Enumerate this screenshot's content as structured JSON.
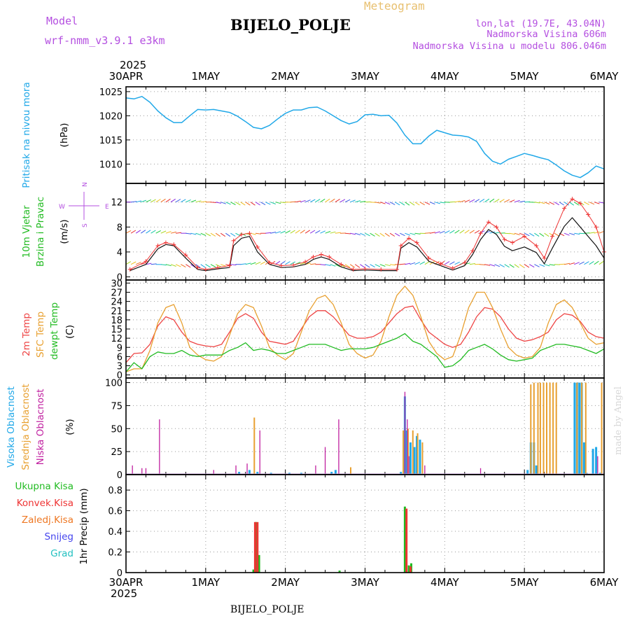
{
  "header": {
    "model_label": "Model",
    "model_name": "wrf-nmm_v3.9.1  e3km",
    "meteogram_label": "Meteogram",
    "station": "BIJELO_POLJE",
    "lonlat": "lon,lat (19.7E, 43.04N)",
    "altitude": "Nadmorska Visina 606m",
    "model_altitude": "Nadmorska Visina u modelu 806.046m",
    "footer_station": "BIJELO_POLJE",
    "credit": "made by Angel"
  },
  "time_axis": {
    "year": "2025",
    "labels": [
      "30APR",
      "1MAY",
      "2MAY",
      "3MAY",
      "4MAY",
      "5MAY",
      "6MAY"
    ],
    "days": 6
  },
  "colors": {
    "pressure": "#20a8e8",
    "temp2m": "#ee4444",
    "sfc_temp": "#e8a030",
    "dewpoint": "#22bb22",
    "wind_speed": "#111111",
    "wind_gust": "#ee3333",
    "wind_axis": "#b44fe0",
    "cloud_high": "#20a8e8",
    "cloud_mid": "#e8a030",
    "cloud_low": "#c020a0",
    "precip_total": "#22bb22",
    "precip_conv": "#ee3333",
    "precip_frozen": "#ee7722",
    "snow": "#4444ee",
    "hail": "#22c0c0"
  },
  "chart_data": [
    {
      "type": "line",
      "panel": "pressure",
      "title_lines": [
        "Pritisak na nivou mora"
      ],
      "ylabel": "(hPa)",
      "ylim": [
        1006,
        1026
      ],
      "yticks": [
        1010,
        1015,
        1020,
        1025
      ],
      "x_unit": "days since 30APR 00UTC",
      "series": [
        {
          "name": "MSLP",
          "x": [
            0,
            0.1,
            0.2,
            0.3,
            0.4,
            0.5,
            0.6,
            0.7,
            0.8,
            0.9,
            1.0,
            1.1,
            1.2,
            1.3,
            1.4,
            1.5,
            1.6,
            1.7,
            1.8,
            1.9,
            2.0,
            2.1,
            2.2,
            2.3,
            2.4,
            2.5,
            2.6,
            2.7,
            2.8,
            2.9,
            3.0,
            3.1,
            3.2,
            3.3,
            3.4,
            3.5,
            3.6,
            3.7,
            3.8,
            3.9,
            4.0,
            4.1,
            4.2,
            4.3,
            4.4,
            4.5,
            4.6,
            4.7,
            4.8,
            4.9,
            5.0,
            5.1,
            5.2,
            5.3,
            5.4,
            5.5,
            5.6,
            5.7,
            5.8,
            5.9,
            6.0
          ],
          "values": [
            1023.7,
            1023.5,
            1024.0,
            1022.8,
            1021.0,
            1019.6,
            1018.6,
            1018.6,
            1020.0,
            1021.3,
            1021.2,
            1021.3,
            1021.0,
            1020.7,
            1019.9,
            1018.8,
            1017.6,
            1017.3,
            1018.0,
            1019.3,
            1020.5,
            1021.2,
            1021.2,
            1021.7,
            1021.8,
            1021.0,
            1020.0,
            1019.0,
            1018.3,
            1018.8,
            1020.2,
            1020.3,
            1020.0,
            1020.1,
            1018.5,
            1016.0,
            1014.2,
            1014.2,
            1015.8,
            1017.0,
            1016.5,
            1016.0,
            1015.9,
            1015.6,
            1014.7,
            1012.2,
            1010.6,
            1010.0,
            1011.0,
            1011.6,
            1012.2,
            1011.8,
            1011.3,
            1010.9,
            1009.8,
            1008.6,
            1007.7,
            1007.2,
            1008.2,
            1009.6,
            1009.0
          ]
        }
      ]
    },
    {
      "type": "line",
      "panel": "wind",
      "title_lines": [
        "10m Vjetar",
        "Brzina i Pravac"
      ],
      "ylabel": "(m/s)",
      "ylim": [
        -0.5,
        15
      ],
      "yticks": [
        0,
        4,
        8,
        12
      ],
      "direction_key": [
        "N",
        "E",
        "S",
        "W"
      ],
      "series": [
        {
          "name": "Wind speed",
          "x": [
            0.05,
            0.25,
            0.4,
            0.5,
            0.6,
            0.75,
            0.9,
            1.0,
            1.15,
            1.3,
            1.35,
            1.45,
            1.55,
            1.65,
            1.8,
            1.95,
            2.1,
            2.25,
            2.35,
            2.45,
            2.55,
            2.7,
            2.85,
            3.0,
            3.2,
            3.4,
            3.45,
            3.55,
            3.65,
            3.8,
            3.95,
            4.1,
            4.25,
            4.35,
            4.45,
            4.55,
            4.65,
            4.75,
            4.85,
            5.0,
            5.15,
            5.25,
            5.35,
            5.5,
            5.6,
            5.7,
            5.8,
            5.9,
            6.0
          ],
          "values": [
            1.0,
            2.0,
            4.5,
            5.2,
            5.0,
            3.0,
            1.2,
            1.0,
            1.3,
            1.5,
            5.0,
            6.2,
            6.5,
            4.0,
            2.0,
            1.5,
            1.6,
            2.0,
            2.8,
            3.2,
            2.8,
            1.6,
            1.0,
            1.1,
            1.0,
            1.0,
            4.6,
            5.5,
            4.8,
            2.5,
            1.8,
            1.1,
            1.8,
            3.6,
            6.0,
            7.6,
            6.8,
            4.9,
            4.2,
            4.8,
            3.9,
            2.1,
            4.6,
            8.1,
            9.5,
            8.0,
            6.5,
            5.0,
            3.0
          ]
        },
        {
          "name": "Wind gust",
          "x": [
            0.05,
            0.25,
            0.4,
            0.5,
            0.6,
            0.75,
            0.9,
            1.0,
            1.15,
            1.3,
            1.35,
            1.45,
            1.55,
            1.65,
            1.8,
            1.95,
            2.1,
            2.25,
            2.35,
            2.45,
            2.55,
            2.7,
            2.85,
            3.0,
            3.2,
            3.4,
            3.45,
            3.55,
            3.65,
            3.8,
            3.95,
            4.1,
            4.25,
            4.35,
            4.45,
            4.55,
            4.65,
            4.75,
            4.85,
            5.0,
            5.15,
            5.25,
            5.35,
            5.5,
            5.6,
            5.7,
            5.8,
            5.9,
            6.0
          ],
          "values": [
            1.2,
            2.5,
            5.0,
            5.5,
            5.2,
            3.5,
            1.5,
            1.2,
            1.5,
            1.8,
            5.8,
            6.8,
            7.0,
            4.8,
            2.3,
            1.8,
            1.9,
            2.4,
            3.2,
            3.6,
            3.2,
            2.0,
            1.2,
            1.3,
            1.2,
            1.2,
            5.0,
            6.2,
            5.5,
            3.0,
            2.1,
            1.4,
            2.3,
            4.2,
            7.0,
            8.8,
            8.0,
            6.0,
            5.5,
            6.5,
            5.0,
            3.0,
            6.5,
            11.0,
            12.5,
            11.8,
            10.0,
            8.0,
            4.0
          ]
        }
      ]
    },
    {
      "type": "line",
      "panel": "temperature",
      "title_lines": [
        "2m Temp",
        "SFC Temp",
        "dewpt Temp"
      ],
      "ylabel": "(C)",
      "ylim": [
        -1,
        31
      ],
      "yticks": [
        0,
        3,
        6,
        9,
        12,
        15,
        18,
        21,
        24,
        27,
        30
      ],
      "series": [
        {
          "name": "2m Temp",
          "x": [
            0,
            0.1,
            0.2,
            0.3,
            0.4,
            0.5,
            0.6,
            0.7,
            0.8,
            0.9,
            1.0,
            1.1,
            1.2,
            1.3,
            1.4,
            1.5,
            1.6,
            1.7,
            1.8,
            1.9,
            2.0,
            2.1,
            2.2,
            2.3,
            2.4,
            2.5,
            2.6,
            2.7,
            2.8,
            2.9,
            3.0,
            3.1,
            3.2,
            3.3,
            3.4,
            3.5,
            3.6,
            3.7,
            3.8,
            3.9,
            4.0,
            4.1,
            4.2,
            4.3,
            4.4,
            4.5,
            4.6,
            4.7,
            4.8,
            4.9,
            5.0,
            5.1,
            5.2,
            5.3,
            5.4,
            5.5,
            5.6,
            5.7,
            5.8,
            5.9,
            6.0
          ],
          "values": [
            4,
            7,
            7.2,
            10,
            16,
            19,
            18,
            14,
            11,
            10,
            9.5,
            9.2,
            10,
            14,
            18.5,
            20,
            18.5,
            14,
            11,
            10.5,
            10,
            11,
            15,
            19,
            21,
            21,
            19,
            16,
            13,
            12,
            12,
            12.5,
            14,
            17,
            20,
            22,
            22.5,
            18,
            14,
            12,
            10,
            9,
            10,
            14,
            19,
            22,
            21.5,
            19,
            15,
            12,
            11,
            11.5,
            12.5,
            14,
            18,
            20,
            19.5,
            17.5,
            14,
            12.5,
            12
          ]
        },
        {
          "name": "SFC Temp",
          "x": [
            0,
            0.1,
            0.2,
            0.3,
            0.4,
            0.5,
            0.6,
            0.7,
            0.8,
            0.9,
            1.0,
            1.1,
            1.2,
            1.3,
            1.4,
            1.5,
            1.6,
            1.7,
            1.8,
            1.9,
            2.0,
            2.1,
            2.2,
            2.3,
            2.4,
            2.5,
            2.6,
            2.7,
            2.8,
            2.9,
            3.0,
            3.1,
            3.2,
            3.3,
            3.4,
            3.5,
            3.6,
            3.7,
            3.8,
            3.9,
            4.0,
            4.1,
            4.2,
            4.3,
            4.4,
            4.5,
            4.6,
            4.7,
            4.8,
            4.9,
            5.0,
            5.1,
            5.2,
            5.3,
            5.4,
            5.5,
            5.6,
            5.7,
            5.8,
            5.9,
            6.0
          ],
          "values": [
            1,
            2,
            2,
            8,
            17,
            22,
            23,
            17,
            9,
            6.5,
            5,
            4.5,
            6,
            13,
            20,
            23,
            22,
            16,
            9,
            6.5,
            5,
            7,
            14,
            21,
            25,
            26,
            23,
            17,
            10,
            7,
            5.5,
            6.5,
            11,
            19,
            26,
            29,
            26,
            19,
            11,
            7,
            5,
            6,
            13,
            22,
            27,
            27,
            22,
            15,
            9,
            6.5,
            5.5,
            6,
            9,
            17,
            23,
            24.5,
            22,
            17,
            12,
            10,
            10.5
          ]
        },
        {
          "name": "dewpt Temp",
          "x": [
            0,
            0.1,
            0.2,
            0.3,
            0.4,
            0.5,
            0.6,
            0.7,
            0.8,
            0.9,
            1.0,
            1.1,
            1.2,
            1.3,
            1.4,
            1.5,
            1.6,
            1.7,
            1.8,
            1.9,
            2.0,
            2.1,
            2.2,
            2.3,
            2.4,
            2.5,
            2.6,
            2.7,
            2.8,
            2.9,
            3.0,
            3.1,
            3.2,
            3.3,
            3.4,
            3.5,
            3.6,
            3.7,
            3.8,
            3.9,
            4.0,
            4.1,
            4.2,
            4.3,
            4.4,
            4.5,
            4.6,
            4.7,
            4.8,
            4.9,
            5.0,
            5.1,
            5.2,
            5.3,
            5.4,
            5.5,
            5.6,
            5.7,
            5.8,
            5.9,
            6.0
          ],
          "values": [
            1,
            4,
            2,
            6,
            7.5,
            7,
            7,
            8,
            6.5,
            6,
            6.5,
            6.5,
            6.5,
            8,
            9,
            10.5,
            8,
            8.5,
            8,
            7,
            7,
            8,
            9,
            10,
            10,
            10,
            9,
            8,
            8.5,
            8.5,
            8.5,
            9,
            10,
            11,
            12,
            13.5,
            11,
            10,
            8,
            6,
            2.5,
            3,
            5,
            8,
            9,
            10,
            8.5,
            6.5,
            5,
            4.5,
            5,
            5.5,
            8,
            9,
            10,
            10,
            9.5,
            9,
            8,
            7,
            8.5
          ]
        }
      ]
    },
    {
      "type": "bar",
      "panel": "clouds",
      "title_lines": [
        "Visoka Oblacnost",
        "Srednja Oblacnost",
        "Niska Oblacnost"
      ],
      "ylabel": "(%)",
      "ylim": [
        0,
        105
      ],
      "yticks": [
        0,
        25,
        50,
        75,
        100
      ],
      "series": [
        {
          "name": "Visoka Oblacnost",
          "x": [
            0.3,
            0.8,
            1.42,
            1.55,
            1.65,
            1.82,
            2.05,
            2.2,
            2.58,
            2.63,
            3.45,
            3.5,
            3.52,
            3.57,
            3.62,
            3.65,
            3.69,
            5.04,
            5.08,
            5.12,
            5.15,
            5.63,
            5.66,
            5.69,
            5.72,
            5.75,
            5.78,
            5.86,
            5.9,
            5.95
          ],
          "values": [
            1,
            1,
            3,
            5,
            3,
            2,
            2,
            2,
            3,
            5,
            3,
            85,
            48,
            35,
            30,
            42,
            38,
            5,
            35,
            35,
            10,
            100,
            100,
            100,
            100,
            35,
            2,
            28,
            30,
            2
          ]
        },
        {
          "name": "Srednja Oblacnost",
          "x": [
            1.61,
            2.82,
            3.48,
            3.54,
            3.6,
            3.66,
            3.72,
            5.08,
            5.12,
            5.17,
            5.2,
            5.24,
            5.28,
            5.32,
            5.36,
            5.4,
            5.66,
            5.72,
            5.77,
            5.97
          ],
          "values": [
            62,
            8,
            48,
            50,
            48,
            45,
            35,
            98,
            100,
            100,
            100,
            100,
            100,
            100,
            100,
            100,
            100,
            100,
            100,
            100
          ]
        },
        {
          "name": "Niska Oblacnost",
          "x": [
            0.08,
            0.2,
            0.25,
            0.42,
            1.1,
            1.38,
            1.52,
            1.68,
            2.38,
            2.5,
            2.67,
            3.5,
            3.53,
            3.55,
            3.75,
            4.45,
            5.92
          ],
          "values": [
            10,
            7,
            7,
            60,
            5,
            10,
            12,
            48,
            10,
            30,
            60,
            90,
            60,
            20,
            10,
            7,
            20
          ]
        }
      ]
    },
    {
      "type": "bar",
      "panel": "precip",
      "title_lines": [
        "Ukupna Kisa",
        "Konvek.Kisa",
        "Zaledj.Kisa",
        "Snijeg",
        "Grad"
      ],
      "ylabel": "1hr Precip (mm)",
      "ylim": [
        0,
        0.95
      ],
      "yticks": [
        0,
        0.2,
        0.4,
        0.6,
        0.8
      ],
      "series": [
        {
          "name": "Ukupna Kisa",
          "x": [
            1.6,
            1.63,
            1.67,
            2.68,
            3.5,
            3.55,
            3.58
          ],
          "values": [
            0.03,
            0.49,
            0.17,
            0.02,
            0.64,
            0.07,
            0.09
          ]
        },
        {
          "name": "Konvek.Kisa",
          "x": [
            1.62,
            1.65,
            3.52,
            3.57
          ],
          "values": [
            0.49,
            0.49,
            0.62,
            0.06
          ]
        },
        {
          "name": "Zaledj.Kisa",
          "x": [],
          "values": []
        },
        {
          "name": "Snijeg",
          "x": [],
          "values": []
        },
        {
          "name": "Grad",
          "x": [],
          "values": []
        }
      ]
    }
  ]
}
